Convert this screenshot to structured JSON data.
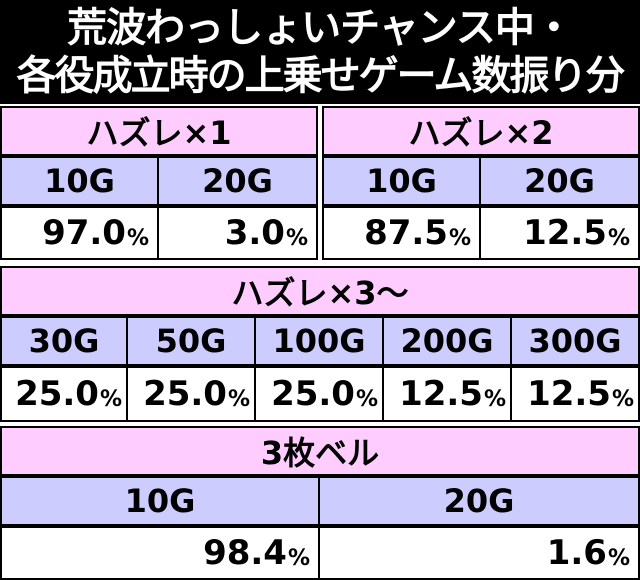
{
  "header": {
    "line1": "荒波わっしょいチャンス中・",
    "line2": "各役成立時の上乗せゲーム数振り分け"
  },
  "tables": {
    "t1": {
      "title": "ハズレ×1",
      "headers": [
        "10G",
        "20G"
      ],
      "values": [
        "97.0",
        "3.0"
      ]
    },
    "t2": {
      "title": "ハズレ×2",
      "headers": [
        "10G",
        "20G"
      ],
      "values": [
        "87.5",
        "12.5"
      ]
    },
    "t3": {
      "title": "ハズレ×3〜",
      "headers": [
        "30G",
        "50G",
        "100G",
        "200G",
        "300G"
      ],
      "values": [
        "25.0",
        "25.0",
        "25.0",
        "12.5",
        "12.5"
      ]
    },
    "t4": {
      "title": "3枚ベル",
      "headers": [
        "10G",
        "20G"
      ],
      "values": [
        "98.4",
        "1.6"
      ]
    }
  },
  "unit": "%",
  "colors": {
    "title_bg": "#ffccff",
    "header_bg": "#ccccff",
    "value_bg": "#ffffff",
    "border": "#000000"
  }
}
